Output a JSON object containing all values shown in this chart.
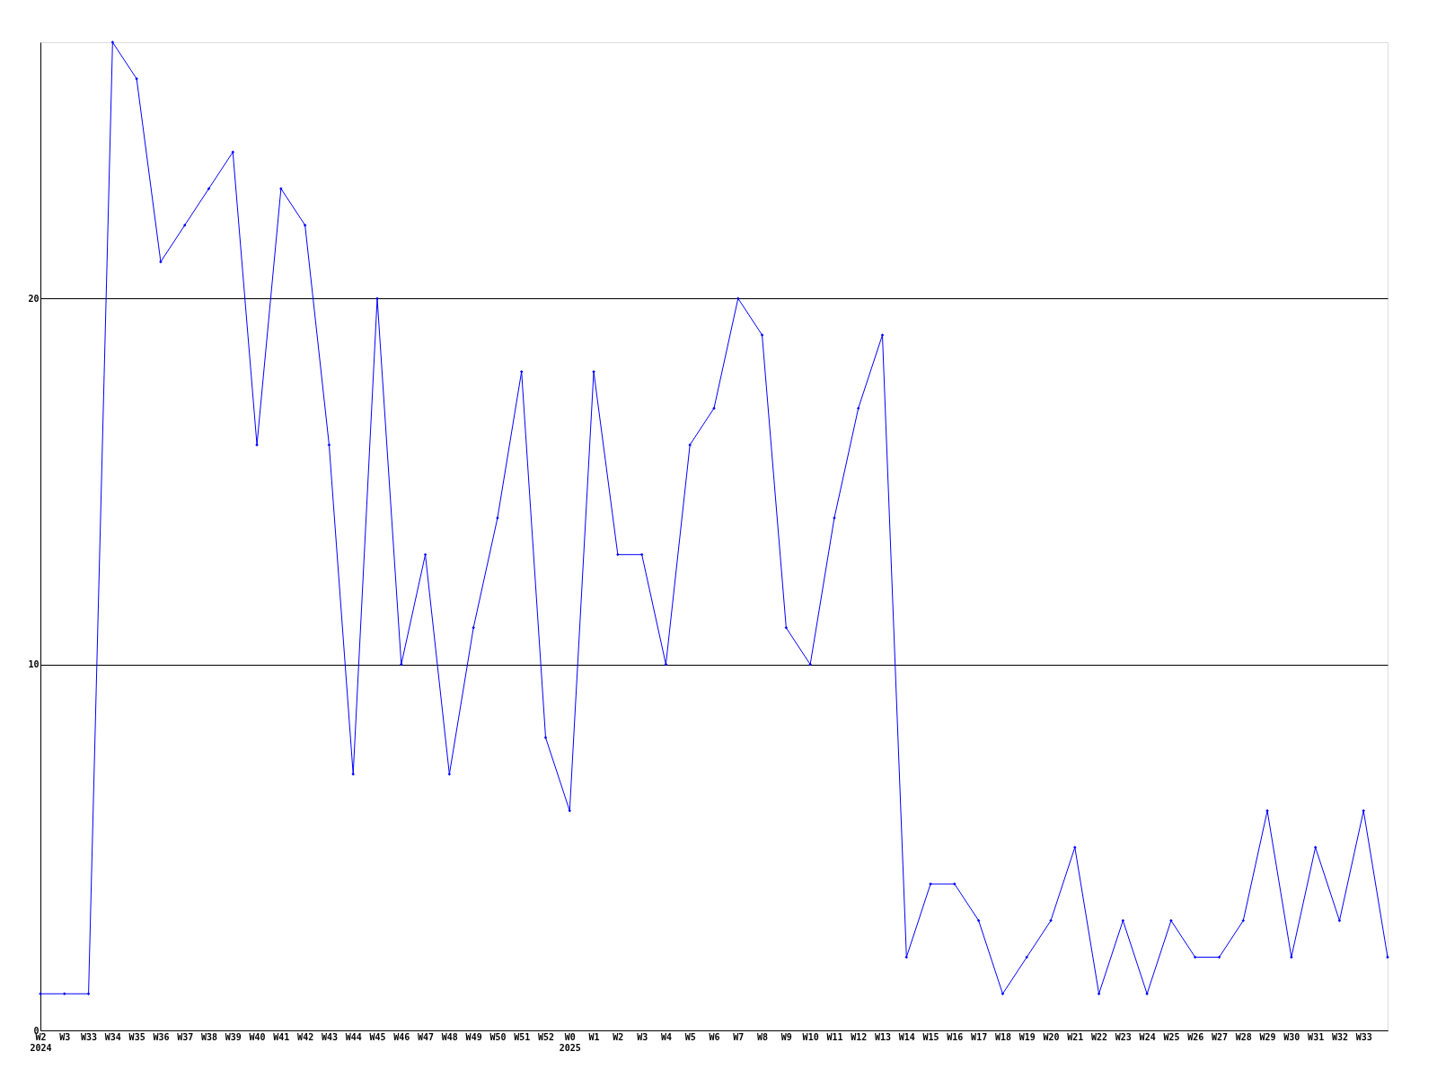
{
  "chart_data": {
    "type": "line",
    "categories": [
      "W2\n2024",
      "W3",
      "W33",
      "W34",
      "W35",
      "W36",
      "W37",
      "W38",
      "W39",
      "W40",
      "W41",
      "W42",
      "W43",
      "W44",
      "W45",
      "W46",
      "W47",
      "W48",
      "W49",
      "W50",
      "W51",
      "W52",
      "W0\n2025",
      "W1",
      "W2",
      "W3",
      "W4",
      "W5",
      "W6",
      "W7",
      "W8",
      "W9",
      "W10",
      "W11",
      "W12",
      "W13",
      "W14",
      "W15",
      "W16",
      "W17",
      "W18",
      "W19",
      "W20",
      "W21",
      "W22",
      "W23",
      "W24",
      "W25",
      "W26",
      "W27",
      "W28",
      "W29",
      "W30",
      "W31",
      "W32",
      "W33",
      null
    ],
    "series": [
      {
        "color": "#0000ff",
        "values": [
          1,
          1,
          1,
          27,
          26,
          21,
          22,
          23,
          24,
          16,
          23,
          22,
          16,
          7,
          20,
          10,
          13,
          7,
          11,
          14,
          18,
          8,
          6,
          18,
          13,
          13,
          10,
          16,
          17,
          20,
          19,
          11,
          10,
          14,
          17,
          19,
          2,
          4,
          4,
          3,
          1,
          2,
          3,
          5,
          1,
          3,
          1,
          3,
          2,
          2,
          3,
          6,
          2,
          5,
          3,
          6,
          2
        ]
      }
    ],
    "ylim": [
      0,
      27
    ],
    "yticks": [
      0,
      10,
      20
    ],
    "grid": "y",
    "marker": "diamond",
    "line_style": "solid"
  }
}
